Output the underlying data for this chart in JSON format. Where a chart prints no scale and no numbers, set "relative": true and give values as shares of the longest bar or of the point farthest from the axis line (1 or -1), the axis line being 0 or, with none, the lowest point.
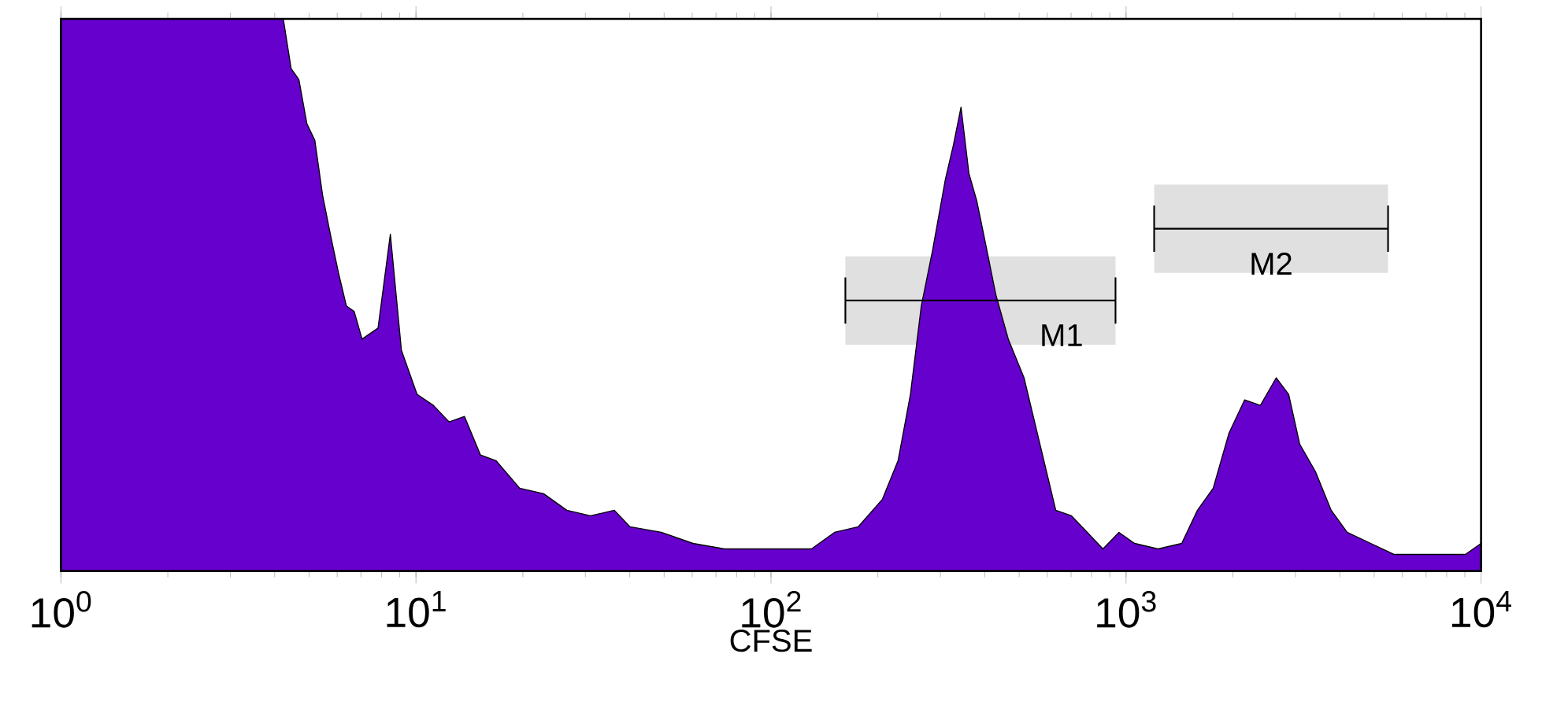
{
  "chart_data": {
    "type": "area",
    "xlabel": "CFSE",
    "log": "x",
    "relative": true,
    "color": "#6600cc",
    "xlim": [
      1,
      10000
    ],
    "xticks": [
      {
        "value": 1,
        "label": "10$^{0}$"
      },
      {
        "value": 10,
        "label": "10$^{1}$"
      },
      {
        "value": 100,
        "label": "10$^{2}$"
      },
      {
        "value": 1000,
        "label": "10$^{3}$"
      },
      {
        "value": 10000,
        "label": "10$^{4}$"
      }
    ],
    "x": [
      1,
      4.23,
      4.45,
      4.68,
      4.93,
      5.19,
      5.46,
      5.74,
      6.05,
      6.37,
      6.7,
      7.05,
      7.82,
      8.47,
      9.1,
      10.07,
      11.2,
      12.4,
      13.7,
      15.2,
      16.8,
      19.6,
      22.9,
      26.6,
      31,
      36.2,
      40.1,
      49.1,
      60.3,
      73.9,
      90.8,
      111,
      130,
      151,
      176,
      206,
      228,
      247,
      265,
      285,
      310,
      326,
      343,
      361,
      380,
      400,
      430,
      466,
      516,
      572,
      634,
      702,
      778,
      861,
      955,
      1057,
      1231,
      1435,
      1589,
      1760,
      1950,
      2158,
      2390,
      2649,
      2871,
      3084,
      3416,
      3784,
      4196,
      4890,
      5697,
      6637,
      7740,
      9030,
      10000
    ],
    "values": [
      1,
      1,
      0.91,
      0.89,
      0.81,
      0.78,
      0.68,
      0.61,
      0.54,
      0.48,
      0.47,
      0.42,
      0.44,
      0.61,
      0.4,
      0.32,
      0.3,
      0.27,
      0.28,
      0.21,
      0.2,
      0.15,
      0.14,
      0.11,
      0.1,
      0.11,
      0.08,
      0.07,
      0.05,
      0.04,
      0.04,
      0.04,
      0.04,
      0.07,
      0.08,
      0.13,
      0.2,
      0.32,
      0.48,
      0.58,
      0.71,
      0.77,
      0.84,
      0.72,
      0.67,
      0.6,
      0.5,
      0.42,
      0.35,
      0.23,
      0.11,
      0.1,
      0.07,
      0.04,
      0.07,
      0.05,
      0.04,
      0.05,
      0.11,
      0.15,
      0.25,
      0.31,
      0.3,
      0.35,
      0.32,
      0.23,
      0.18,
      0.11,
      0.07,
      0.05,
      0.03,
      0.03,
      0.03,
      0.03,
      0.05
    ],
    "bands": [
      {
        "axis": "x",
        "from": 162,
        "to": 934,
        "label": "M1"
      },
      {
        "axis": "x",
        "from": 1200,
        "to": 5470,
        "label": "M2"
      }
    ]
  }
}
